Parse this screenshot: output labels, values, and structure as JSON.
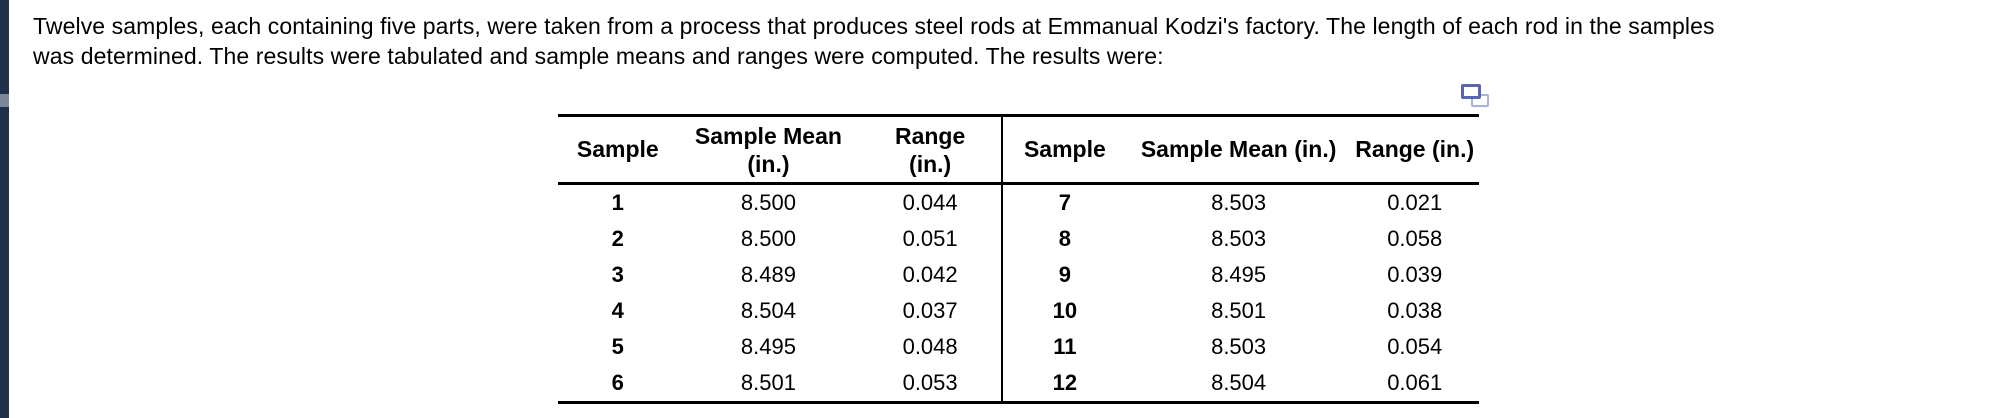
{
  "intro": {
    "line1": "Twelve samples, each containing five parts, were taken from a process that produces steel rods at Emmanual Kodzi's factory. The length of each rod in the samples",
    "line2": "was determined. The results were tabulated and sample means and ranges were computed. The results were:"
  },
  "icons": {
    "copy": "copy-icon"
  },
  "colors": {
    "edge_bar": "#203049",
    "copy_icon_front": "#5965ae",
    "copy_icon_back": "#a9b2d8",
    "table_border": "#000000"
  },
  "table": {
    "left": {
      "header": {
        "sample": "Sample",
        "mean_l1": "Sample Mean",
        "mean_l2": "(in.)",
        "range_l1": "Range",
        "range_l2": "(in.)"
      },
      "rows": [
        {
          "sample": "1",
          "mean": "8.500",
          "range": "0.044"
        },
        {
          "sample": "2",
          "mean": "8.500",
          "range": "0.051"
        },
        {
          "sample": "3",
          "mean": "8.489",
          "range": "0.042"
        },
        {
          "sample": "4",
          "mean": "8.504",
          "range": "0.037"
        },
        {
          "sample": "5",
          "mean": "8.495",
          "range": "0.048"
        },
        {
          "sample": "6",
          "mean": "8.501",
          "range": "0.053"
        }
      ]
    },
    "right": {
      "header": {
        "sample": "Sample",
        "mean": "Sample Mean (in.)",
        "range": "Range (in.)"
      },
      "rows": [
        {
          "sample": "7",
          "mean": "8.503",
          "range": "0.021"
        },
        {
          "sample": "8",
          "mean": "8.503",
          "range": "0.058"
        },
        {
          "sample": "9",
          "mean": "8.495",
          "range": "0.039"
        },
        {
          "sample": "10",
          "mean": "8.501",
          "range": "0.038"
        },
        {
          "sample": "11",
          "mean": "8.503",
          "range": "0.054"
        },
        {
          "sample": "12",
          "mean": "8.504",
          "range": "0.061"
        }
      ]
    }
  }
}
